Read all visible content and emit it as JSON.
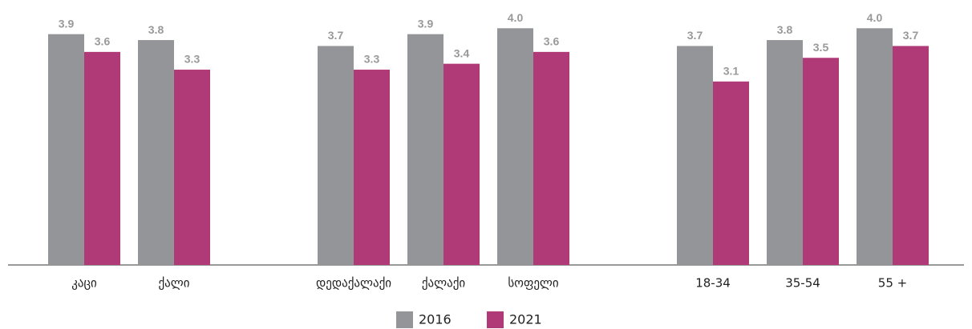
{
  "chart_data": {
    "type": "bar",
    "categories": [
      "კაცი",
      "ქალი",
      null,
      "დედაქალაქი",
      "ქალაქი",
      "სოფელი",
      null,
      "18-34",
      "35-54",
      "55 +"
    ],
    "series": [
      {
        "name": "2016",
        "color": "#939598",
        "values": [
          3.9,
          3.8,
          null,
          3.7,
          3.9,
          4.0,
          null,
          3.7,
          3.8,
          4.0
        ],
        "value_labels": [
          "3.9",
          "3.8",
          null,
          "3.7",
          "3.9",
          "4.0",
          null,
          "3.7",
          "3.8",
          "4.0"
        ]
      },
      {
        "name": "2021",
        "color": "#b03a78",
        "values": [
          3.6,
          3.3,
          null,
          3.3,
          3.4,
          3.6,
          null,
          3.1,
          3.5,
          3.7
        ],
        "value_labels": [
          "3.6",
          "3.3",
          null,
          "3.3",
          "3.4",
          "3.6",
          null,
          "3.1",
          "3.5",
          "3.7"
        ]
      }
    ],
    "ylim": [
      0,
      4.45
    ],
    "legend": "bottom"
  }
}
